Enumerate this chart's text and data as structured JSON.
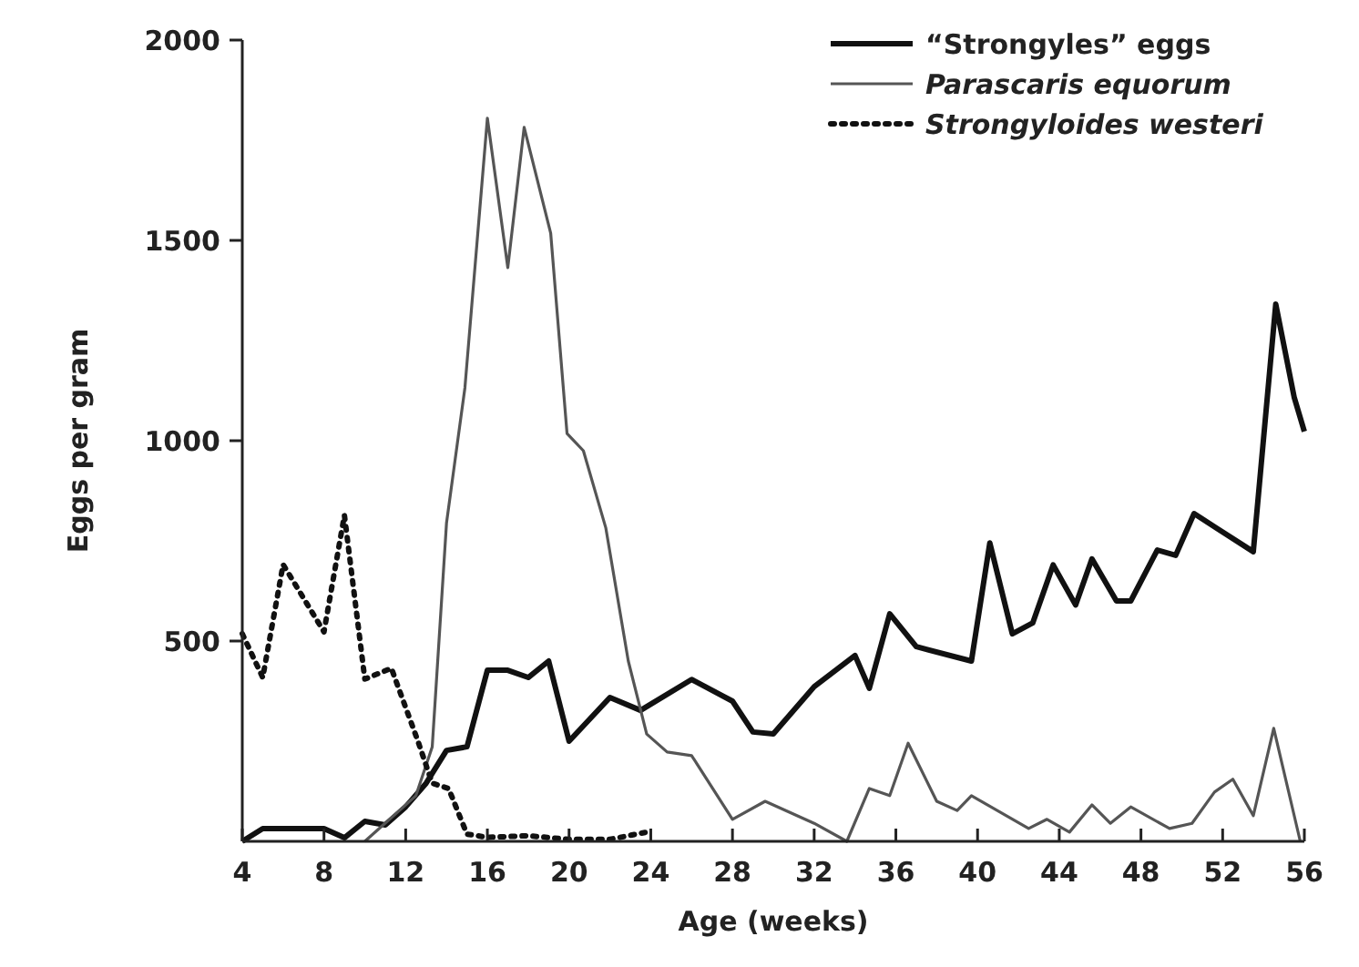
{
  "chart_data": {
    "type": "line",
    "xlabel": "Age (weeks)",
    "ylabel": "Eggs per gram",
    "xlim": [
      4,
      56
    ],
    "xticks": [
      4,
      8,
      12,
      16,
      20,
      24,
      28,
      32,
      36,
      40,
      44,
      48,
      52,
      56
    ],
    "ylim": [
      0,
      2000
    ],
    "yticks": [
      500,
      1000,
      1500,
      2000
    ],
    "grid": false,
    "legend": "top right",
    "marker": "none",
    "series": [
      {
        "name": "“Strongyles” eggs",
        "color": "#111111",
        "line_style": "solid",
        "x": [
          4,
          5,
          8,
          9,
          10,
          11,
          12,
          13,
          14,
          15,
          16,
          17,
          18,
          19,
          20,
          22,
          23.5,
          26,
          28,
          29,
          30,
          32,
          34,
          34.7,
          35.7,
          37,
          39.7,
          40.6,
          41.7,
          42.7,
          43.7,
          44.8,
          45.6,
          46.8,
          47.5,
          48.8,
          49.7,
          50.6,
          51.7,
          53.5,
          54.6,
          55.5,
          56
        ],
        "values": [
          0,
          32,
          32,
          9,
          50,
          41,
          86,
          145,
          227,
          236,
          427,
          427,
          409,
          450,
          250,
          359,
          327,
          404,
          350,
          273,
          268,
          386,
          464,
          382,
          568,
          486,
          450,
          745,
          518,
          545,
          690,
          590,
          705,
          600,
          600,
          727,
          714,
          818,
          782,
          723,
          1341,
          1109,
          1023
        ]
      },
      {
        "name": "Parascaris equorum",
        "color": "#555555",
        "line_style": "solid",
        "x": [
          10,
          12.5,
          13.3,
          14,
          14.9,
          16,
          17,
          17.8,
          19.1,
          19.9,
          20.7,
          21.8,
          22.9,
          23.8,
          24.8,
          26,
          28,
          29.6,
          32,
          33.6,
          34.7,
          35.7,
          36.6,
          38,
          39,
          39.7,
          42.5,
          43.4,
          44.5,
          45.6,
          46.5,
          47.5,
          49.4,
          50.5,
          51.6,
          52.5,
          53.5,
          54.5,
          55.8
        ],
        "values": [
          0,
          114,
          236,
          795,
          1132,
          1805,
          1432,
          1782,
          1518,
          1018,
          975,
          782,
          450,
          268,
          223,
          214,
          55,
          100,
          45,
          0,
          132,
          114,
          245,
          100,
          77,
          114,
          32,
          55,
          23,
          91,
          45,
          86,
          32,
          45,
          123,
          155,
          64,
          282,
          0
        ]
      },
      {
        "name": "Strongyloides westeri",
        "color": "#111111",
        "line_style": "dotted",
        "x": [
          4,
          5,
          6,
          8,
          9,
          10,
          11.3,
          12.6,
          13.3,
          14.1,
          15,
          16,
          18,
          20,
          22,
          24
        ],
        "values": [
          518,
          409,
          691,
          523,
          814,
          405,
          432,
          250,
          145,
          132,
          18,
          10,
          14,
          5,
          5,
          25
        ]
      }
    ]
  }
}
